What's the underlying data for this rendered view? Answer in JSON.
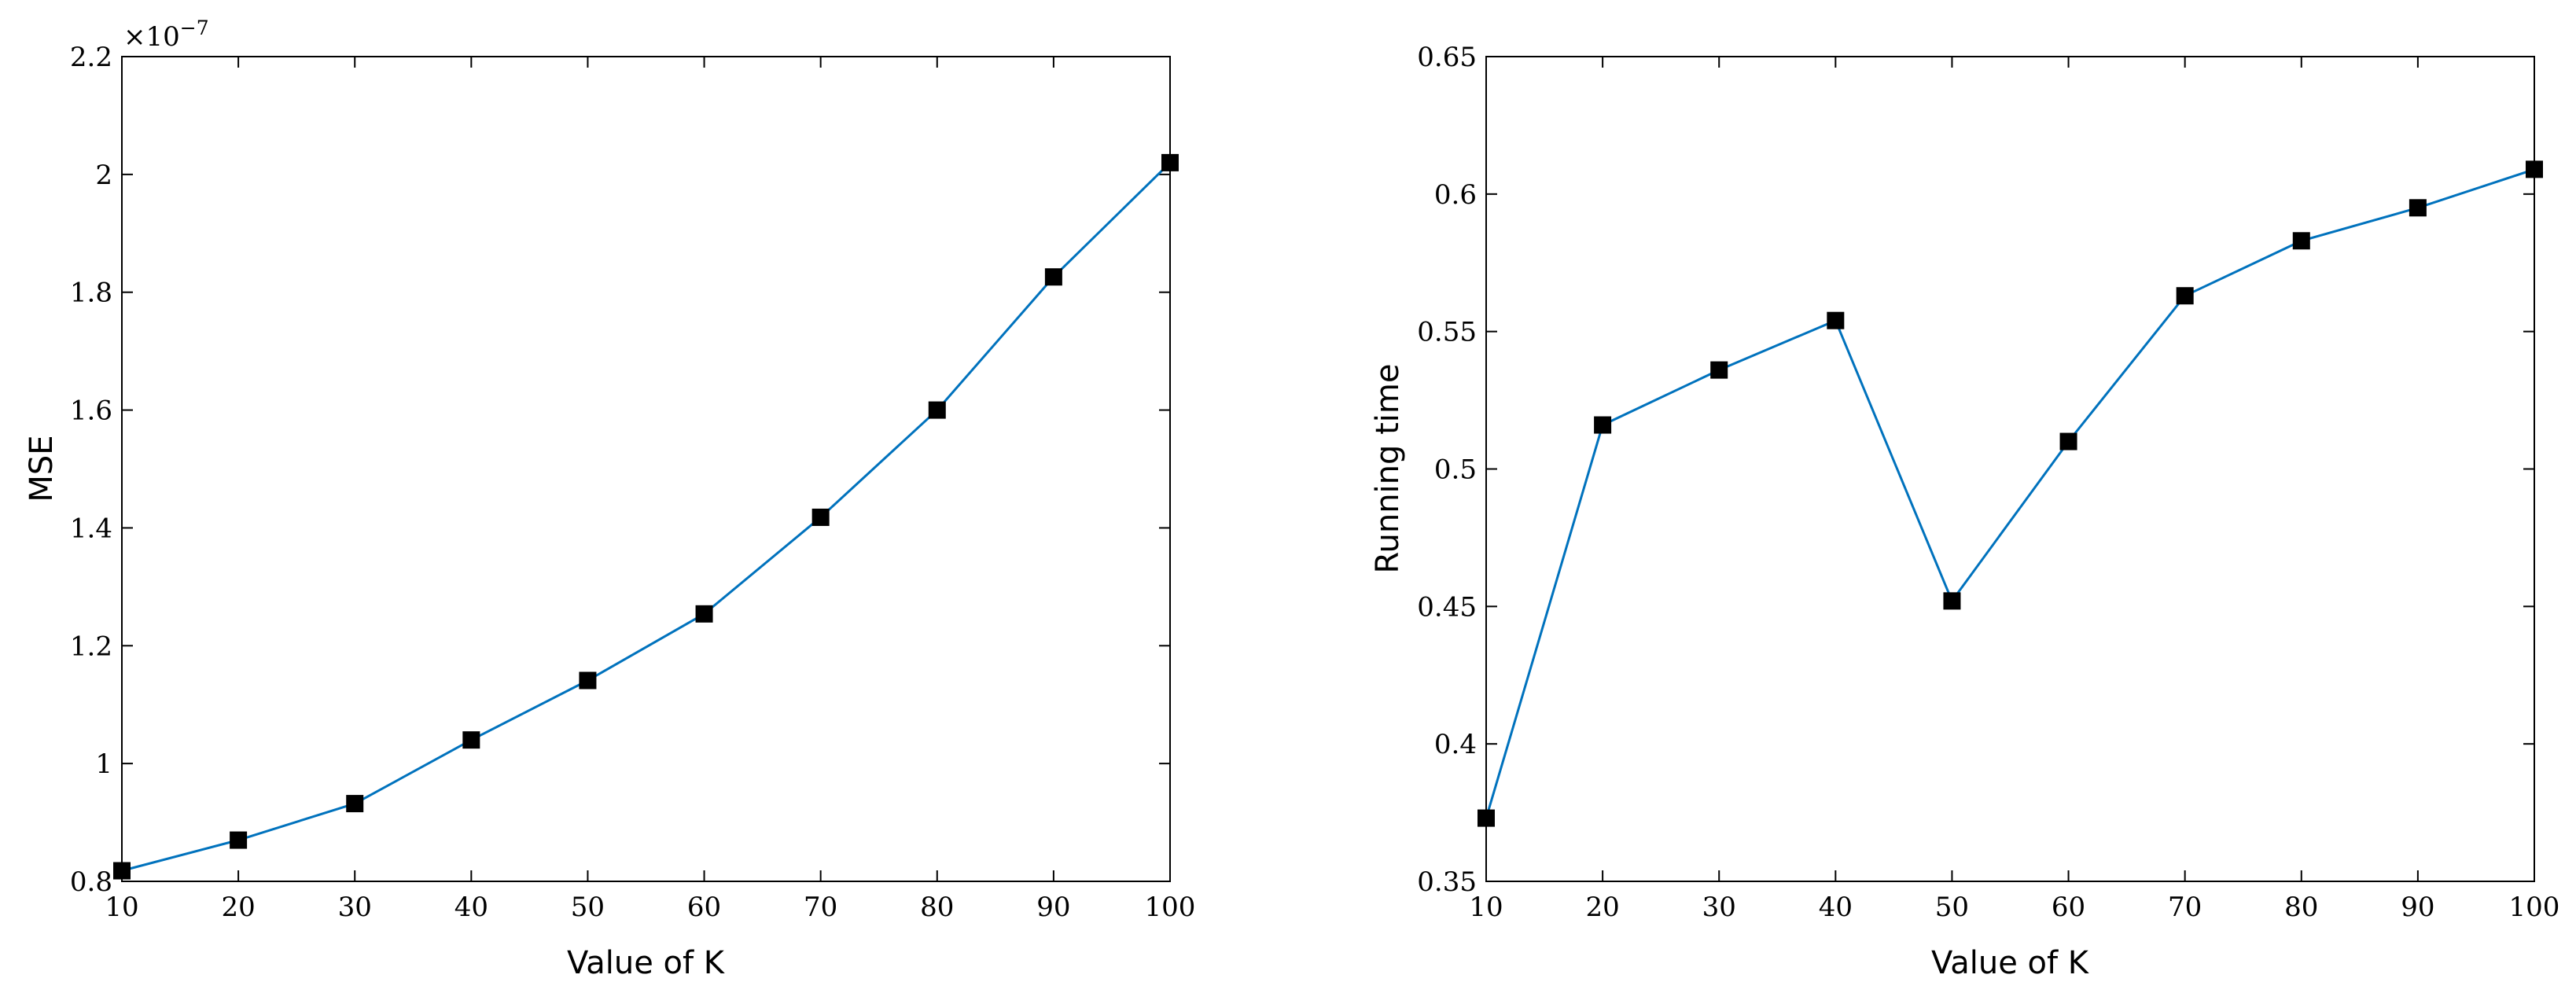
{
  "chart_data": [
    {
      "type": "line",
      "xlabel": "Value of K",
      "ylabel": "MSE",
      "x": [
        10,
        20,
        30,
        40,
        50,
        60,
        70,
        80,
        90,
        100
      ],
      "series": [
        {
          "values": [
            0.818,
            0.87,
            0.932,
            1.04,
            1.141,
            1.254,
            1.418,
            1.6,
            1.826,
            2.02
          ],
          "color": "#0072BD",
          "marker": "square"
        }
      ],
      "xlim": [
        10,
        100
      ],
      "ylim": [
        0.8,
        2.2
      ],
      "xticks": [
        10,
        20,
        30,
        40,
        50,
        60,
        70,
        80,
        90,
        100
      ],
      "yticks": [
        0.8,
        1,
        1.2,
        1.4,
        1.6,
        1.8,
        2,
        2.2
      ],
      "xtick_labels": [
        "10",
        "20",
        "30",
        "40",
        "50",
        "60",
        "70",
        "80",
        "90",
        "100"
      ],
      "ytick_labels": [
        "0.8",
        "1",
        "1.2",
        "1.4",
        "1.6",
        "1.8",
        "2",
        "2.2"
      ],
      "y_multiplier": {
        "base": "×10",
        "exponent": "−7"
      },
      "grid": false
    },
    {
      "type": "line",
      "xlabel": "Value of K",
      "ylabel": "Running time",
      "x": [
        10,
        20,
        30,
        40,
        50,
        60,
        70,
        80,
        90,
        100
      ],
      "series": [
        {
          "values": [
            0.373,
            0.516,
            0.536,
            0.554,
            0.452,
            0.51,
            0.563,
            0.583,
            0.595,
            0.609
          ],
          "color": "#0072BD",
          "marker": "square"
        }
      ],
      "xlim": [
        10,
        100
      ],
      "ylim": [
        0.35,
        0.65
      ],
      "xticks": [
        10,
        20,
        30,
        40,
        50,
        60,
        70,
        80,
        90,
        100
      ],
      "yticks": [
        0.35,
        0.4,
        0.45,
        0.5,
        0.55,
        0.6,
        0.65
      ],
      "xtick_labels": [
        "10",
        "20",
        "30",
        "40",
        "50",
        "60",
        "70",
        "80",
        "90",
        "100"
      ],
      "ytick_labels": [
        "0.35",
        "0.4",
        "0.45",
        "0.5",
        "0.55",
        "0.6",
        "0.65"
      ],
      "grid": false
    }
  ]
}
